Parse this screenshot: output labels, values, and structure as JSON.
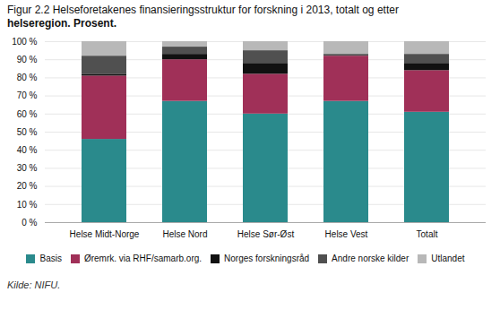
{
  "chart_data": {
    "type": "bar",
    "title": "Figur 2.2 Helseforetakenes finansieringsstruktur for forskning i 2013, totalt og etter",
    "subtitle": "helseregion. Prosent.",
    "caption": "Kilde: NIFU.",
    "categories": [
      "Helse Midt-Norge",
      "Helse Nord",
      "Helse Sør-Øst",
      "Helse Vest",
      "Totalt"
    ],
    "series": [
      {
        "name": "Basis",
        "color": "#2a8a8c",
        "values": [
          46,
          67,
          60,
          67,
          61
        ]
      },
      {
        "name": "Øremrk. via RHF/samarb.org.",
        "color": "#a03058",
        "values": [
          35,
          23,
          22,
          25,
          23
        ]
      },
      {
        "name": "Norges forskningsråd",
        "color": "#111111",
        "values": [
          1,
          3,
          6,
          0,
          4
        ]
      },
      {
        "name": "Andre norske kilder",
        "color": "#505050",
        "values": [
          10,
          4,
          7,
          1,
          5
        ]
      },
      {
        "name": "Utlandet",
        "color": "#b8b8b8",
        "values": [
          8,
          3,
          5,
          7,
          7
        ]
      }
    ],
    "stacked": true,
    "ylim": [
      0,
      100
    ],
    "yticks": [
      {
        "value": 0,
        "label": "0 %"
      },
      {
        "value": 10,
        "label": "10 %"
      },
      {
        "value": 20,
        "label": "20 %"
      },
      {
        "value": 30,
        "label": "30 %"
      },
      {
        "value": 40,
        "label": "40 %"
      },
      {
        "value": 50,
        "label": "50 %"
      },
      {
        "value": 60,
        "label": "60 %"
      },
      {
        "value": 70,
        "label": "70 %"
      },
      {
        "value": 80,
        "label": "80 %"
      },
      {
        "value": 90,
        "label": "90 %"
      },
      {
        "value": 100,
        "label": "100 %"
      }
    ],
    "grid": true,
    "legend": "bottom"
  }
}
